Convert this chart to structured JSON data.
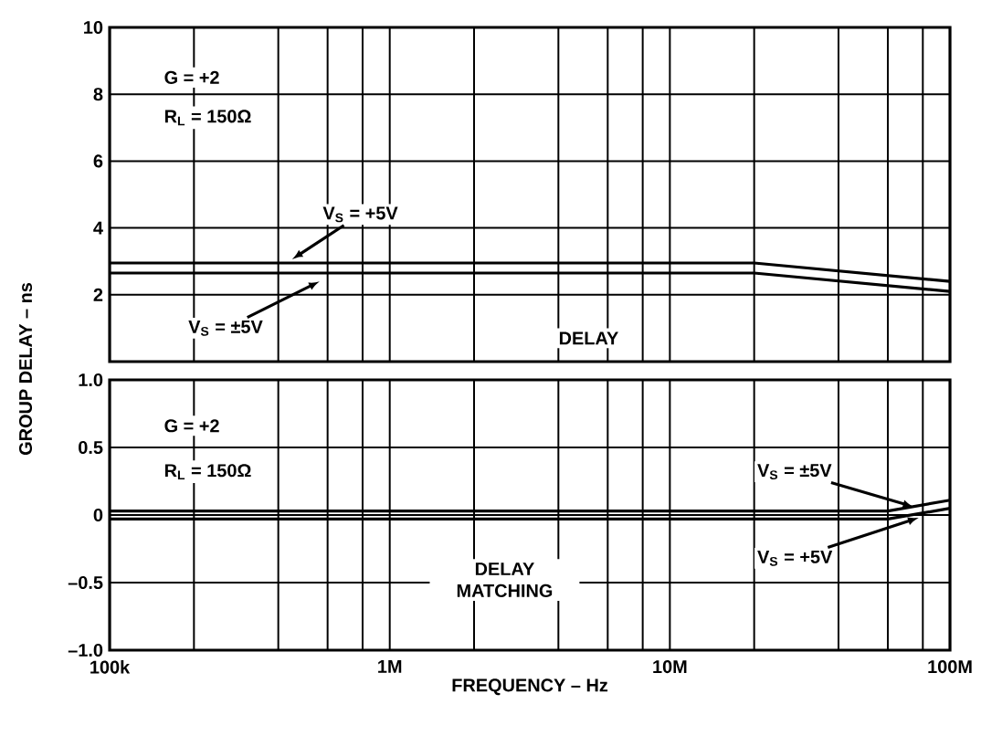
{
  "chart_data": [
    {
      "type": "line",
      "ylabel": "GROUP DELAY – ns",
      "xlim": [
        100000,
        100000000
      ],
      "xticks": [
        {
          "value": 100000,
          "label": null
        },
        {
          "value": 1000000,
          "label": null
        },
        {
          "value": 10000000,
          "label": null
        },
        {
          "value": 100000000,
          "label": null
        }
      ],
      "ylim": [
        0,
        10
      ],
      "yticks": [
        2,
        4,
        6,
        8,
        10
      ],
      "log": "x",
      "grid": true,
      "tick_labels": "y",
      "series": [
        {
          "name": "V$_{S}$ = +5V",
          "color": "#000000",
          "x": [
            100000,
            20000000,
            100000000
          ],
          "values": [
            2.95,
            2.95,
            2.4
          ]
        },
        {
          "name": "V$_{S}$ = ±5V",
          "color": "#000000",
          "x": [
            100000,
            20000000,
            100000000
          ],
          "values": [
            2.65,
            2.65,
            2.1
          ]
        }
      ],
      "annotations": [
        "G = +2",
        "R$_{L}$ = 150Ω",
        "DELAY"
      ]
    },
    {
      "type": "line",
      "xlabel": "FREQUENCY – Hz",
      "xlim": [
        100000,
        100000000
      ],
      "xticks": [
        {
          "value": 100000,
          "label": "100k"
        },
        {
          "value": 1000000,
          "label": "1M"
        },
        {
          "value": 10000000,
          "label": "10M"
        },
        {
          "value": 100000000,
          "label": "100M"
        }
      ],
      "ylim": [
        -1,
        1
      ],
      "yticks": [
        {
          "value": -1,
          "label": "–1.0"
        },
        {
          "value": -0.5,
          "label": "–0.5"
        },
        0,
        0.5,
        {
          "value": 1,
          "label": "1.0"
        }
      ],
      "log": "x",
      "grid": true,
      "series": [
        {
          "name": "V$_{S}$ = ±5V",
          "color": "#000000",
          "x": [
            100000,
            60000000,
            100000000
          ],
          "values": [
            0.03,
            0.03,
            0.11
          ]
        },
        {
          "name": "V$_{S}$ = +5V",
          "color": "#000000",
          "x": [
            100000,
            60000000,
            100000000
          ],
          "values": [
            -0.03,
            -0.03,
            0.05
          ]
        }
      ],
      "annotations": [
        "G = +2",
        "R$_{L}$ = 150Ω",
        "DELAY MATCHING"
      ]
    }
  ]
}
